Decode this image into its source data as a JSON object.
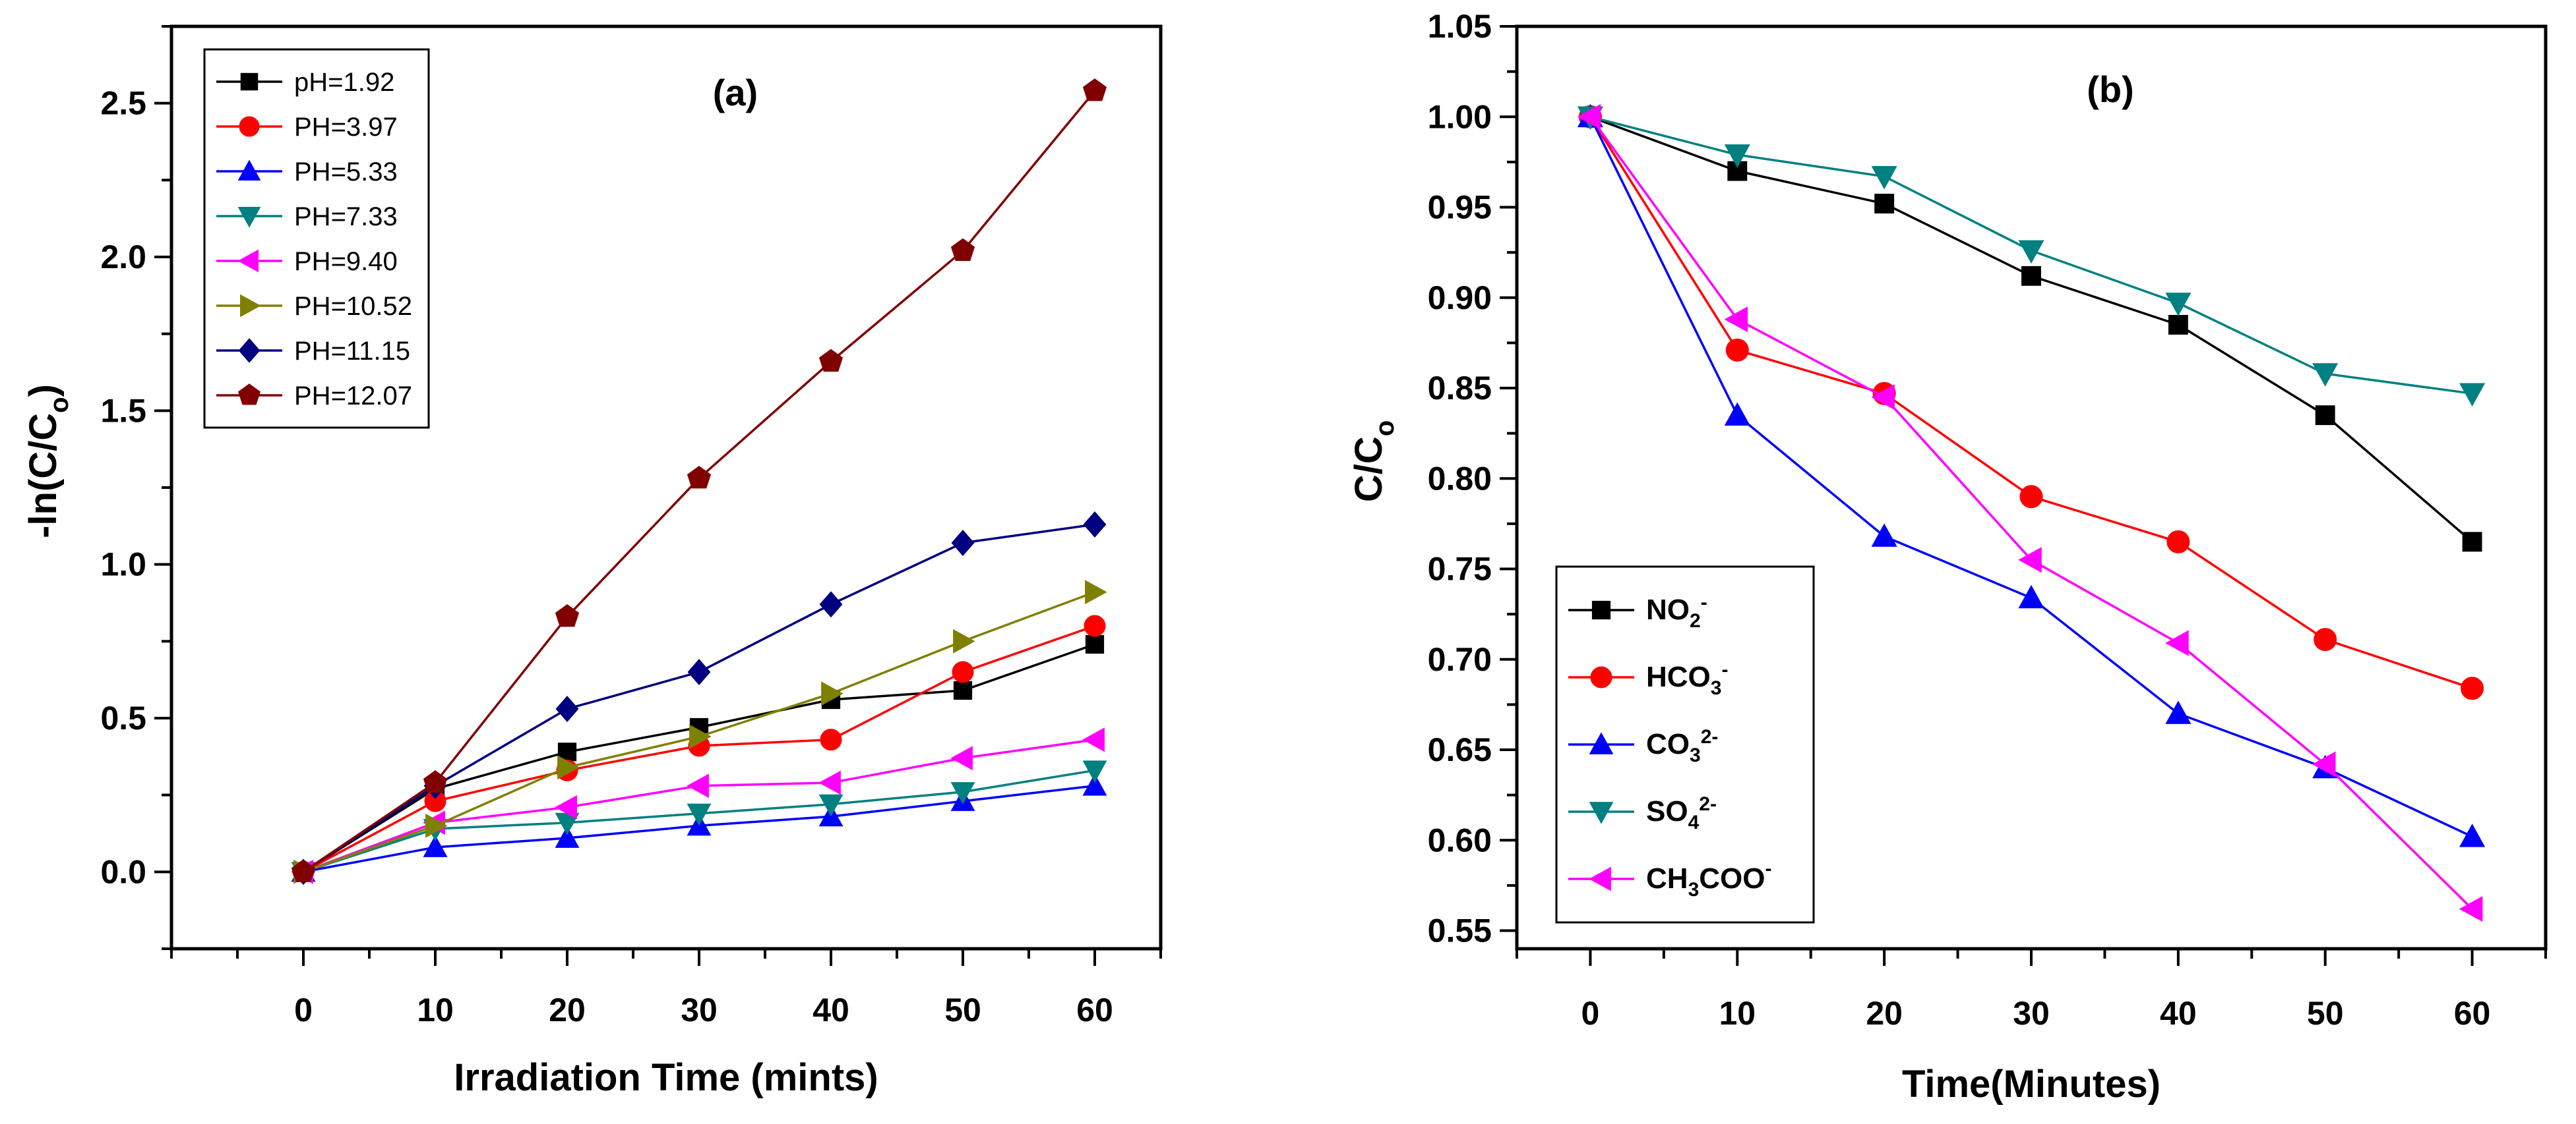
{
  "chart_data": [
    {
      "type": "line",
      "panel_label": "(a)",
      "xlabel": "Irradiation Time (mints)",
      "ylabel": "-ln(C/Co)",
      "ylabel_main": "-ln(C/C",
      "ylabel_sub": "o",
      "ylabel_end": ")",
      "xlim": [
        -10,
        65
      ],
      "ylim": [
        -0.25,
        2.75
      ],
      "xticks": [
        0,
        10,
        20,
        30,
        40,
        50,
        60
      ],
      "yticks": [
        0.0,
        0.5,
        1.0,
        1.5,
        2.0,
        2.5
      ],
      "ytick_labels": [
        "0.0",
        "0.5",
        "1.0",
        "1.5",
        "2.0",
        "2.5"
      ],
      "legend_position": "top-left",
      "x": [
        0,
        10,
        20,
        30,
        40,
        50,
        60
      ],
      "series": [
        {
          "name": "pH=1.92",
          "color": "#000000",
          "marker": "square",
          "values": [
            0.0,
            0.27,
            0.39,
            0.47,
            0.56,
            0.59,
            0.74
          ]
        },
        {
          "name": "PH=3.97",
          "color": "#ff0000",
          "marker": "circle",
          "values": [
            0.0,
            0.23,
            0.33,
            0.41,
            0.43,
            0.65,
            0.8
          ]
        },
        {
          "name": "PH=5.33",
          "color": "#0000ff",
          "marker": "triangle-up",
          "values": [
            0.0,
            0.08,
            0.11,
            0.15,
            0.18,
            0.23,
            0.28
          ]
        },
        {
          "name": "PH=7.33",
          "color": "#008080",
          "marker": "triangle-down",
          "values": [
            0.0,
            0.14,
            0.16,
            0.19,
            0.22,
            0.26,
            0.33
          ]
        },
        {
          "name": "PH=9.40",
          "color": "#ff00ff",
          "marker": "triangle-left",
          "values": [
            0.0,
            0.16,
            0.21,
            0.28,
            0.29,
            0.37,
            0.43
          ]
        },
        {
          "name": "PH=10.52",
          "color": "#808000",
          "marker": "triangle-right",
          "values": [
            0.0,
            0.15,
            0.34,
            0.44,
            0.58,
            0.75,
            0.91
          ]
        },
        {
          "name": "PH=11.15",
          "color": "#000080",
          "marker": "diamond",
          "values": [
            0.0,
            0.28,
            0.53,
            0.65,
            0.87,
            1.07,
            1.13
          ]
        },
        {
          "name": "PH=12.07",
          "color": "#800000",
          "marker": "pentagon",
          "values": [
            0.0,
            0.29,
            0.83,
            1.28,
            1.66,
            2.02,
            2.54
          ]
        }
      ]
    },
    {
      "type": "line",
      "panel_label": "(b)",
      "xlabel": "Time(Minutes)",
      "ylabel": "C/Co",
      "ylabel_main": "C/C",
      "ylabel_sub": "o",
      "ylabel_end": "",
      "xlim": [
        -5,
        65
      ],
      "ylim": [
        0.54,
        1.05
      ],
      "xticks": [
        0,
        10,
        20,
        30,
        40,
        50,
        60
      ],
      "yticks": [
        0.55,
        0.6,
        0.65,
        0.7,
        0.75,
        0.8,
        0.85,
        0.9,
        0.95,
        1.0,
        1.05
      ],
      "ytick_labels": [
        "0.55",
        "0.60",
        "0.65",
        "0.70",
        "0.75",
        "0.80",
        "0.85",
        "0.90",
        "0.95",
        "1.00",
        "1.05"
      ],
      "legend_position": "bottom-left",
      "x": [
        0,
        10,
        20,
        30,
        40,
        50,
        60
      ],
      "series": [
        {
          "name": "NO2-",
          "label_main": "NO",
          "label_sub": "2",
          "label_sup": "-",
          "label_end": "",
          "color": "#000000",
          "marker": "square",
          "values": [
            1.0,
            0.97,
            0.952,
            0.912,
            0.885,
            0.835,
            0.765
          ]
        },
        {
          "name": "HCO3-",
          "label_main": "HCO",
          "label_sub": "3",
          "label_sup": "-",
          "label_end": "",
          "color": "#ff0000",
          "marker": "circle",
          "values": [
            1.0,
            0.871,
            0.847,
            0.79,
            0.765,
            0.711,
            0.684
          ]
        },
        {
          "name": "CO3 2-",
          "label_main": "CO",
          "label_sub": "3",
          "label_sup": "2-",
          "label_end": "",
          "color": "#0000ff",
          "marker": "triangle-up",
          "values": [
            1.0,
            0.835,
            0.768,
            0.734,
            0.67,
            0.64,
            0.602
          ]
        },
        {
          "name": "SO4 2-",
          "label_main": "SO",
          "label_sub": "4",
          "label_sup": "2-",
          "label_end": "",
          "color": "#008080",
          "marker": "triangle-down",
          "values": [
            1.0,
            0.979,
            0.967,
            0.926,
            0.897,
            0.858,
            0.847
          ]
        },
        {
          "name": "CH3COO-",
          "label_main": "CH",
          "label_sub": "3",
          "label_sup": "",
          "label_end": "COO",
          "label_sup_end": "-",
          "color": "#ff00ff",
          "marker": "triangle-left",
          "values": [
            1.0,
            0.888,
            0.845,
            0.755,
            0.709,
            0.642,
            0.562
          ]
        }
      ]
    }
  ]
}
